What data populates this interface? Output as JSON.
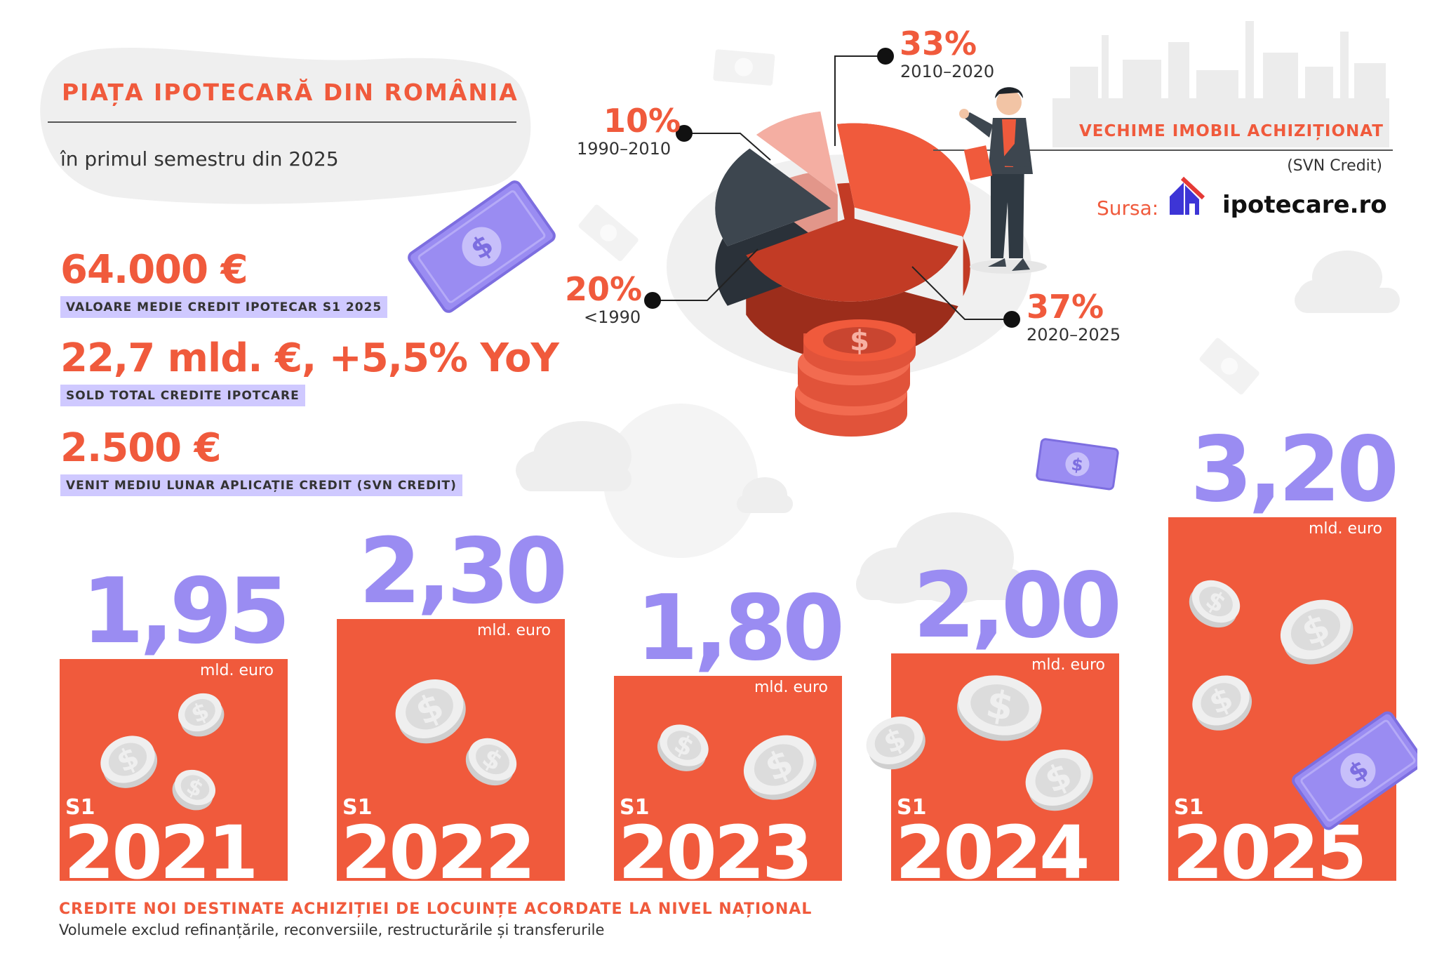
{
  "header": {
    "title": "PIAȚA IPOTECARĂ DIN ROMÂNIA",
    "subtitle": "în primul semestru din 2025"
  },
  "stats": [
    {
      "value": "64.000 €",
      "label": "VALOARE MEDIE CREDIT IPOTECAR S1 2025"
    },
    {
      "value": "22,7 mld. €, +5,5% YoY",
      "label": "SOLD TOTAL CREDITE IPOTCARE"
    },
    {
      "value": "2.500 €",
      "label": "VENIT MEDIU LUNAR APLICAȚIE CREDIT (SVN CREDIT)"
    }
  ],
  "pie_section": {
    "title": "VECHIME IMOBIL ACHIZIȚIONAT",
    "note": "(SVN Credit)",
    "source_label": "Sursa:",
    "source_name": "ipotecare.ro"
  },
  "footer": {
    "title": "CREDITE NOI DESTINATE ACHIZIȚIEI DE LOCUINȚE ACORDATE LA NIVEL NAȚIONAL",
    "note": "Volumele exclud refinanțările, reconversiile, restructurările și transferurile"
  },
  "colors": {
    "accent": "#f05a3c",
    "purple": "#9a8cf2",
    "purple_light": "#cfc9ff",
    "dark": "#3d464f",
    "pink": "#f4aea2"
  },
  "chart_data": [
    {
      "type": "bar",
      "title": "",
      "categories": [
        "S1 2021",
        "S1 2022",
        "S1 2023",
        "S1 2024",
        "S1 2025"
      ],
      "period_label": "S1",
      "years": [
        "2021",
        "2022",
        "2023",
        "2024",
        "2025"
      ],
      "values": [
        1.95,
        2.3,
        1.8,
        2.0,
        3.2
      ],
      "value_labels": [
        "1,95",
        "2,30",
        "1,80",
        "2,00",
        "3,20"
      ],
      "unit": "mld. euro"
    },
    {
      "type": "pie",
      "categories": [
        "2010–2020",
        "2020–2025",
        "<1990",
        "1990–2010"
      ],
      "values": [
        33,
        37,
        20,
        10
      ],
      "value_labels": [
        "33%",
        "37%",
        "20%",
        "10%"
      ],
      "colors": [
        "#f05a3c",
        "#c23b25",
        "#3d464f",
        "#f4aea2"
      ]
    }
  ]
}
